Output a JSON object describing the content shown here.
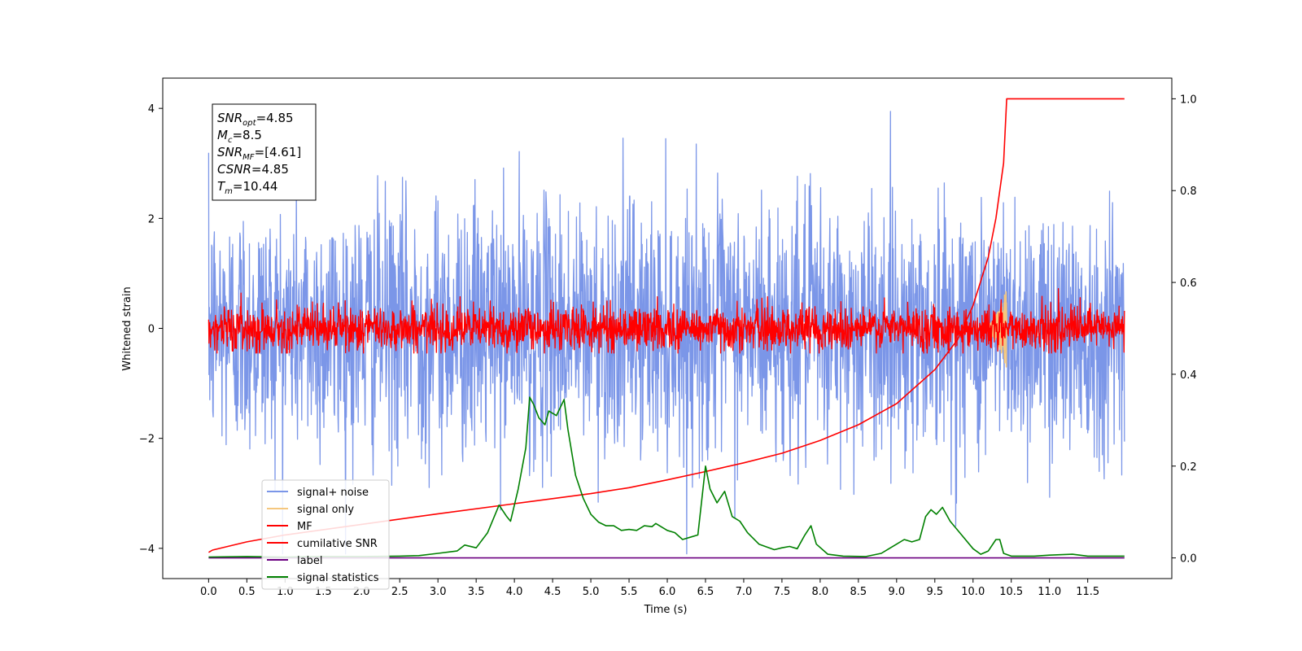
{
  "chart_data": {
    "type": "line",
    "title": "",
    "xlabel": "Time (s)",
    "ylabel": "Whitened strain",
    "ylabel_right": "",
    "xlim": [
      -0.6,
      12.6
    ],
    "ylim": [
      -4.55,
      4.55
    ],
    "ylim_right": [
      -0.045,
      1.045
    ],
    "x_ticks": [
      0.0,
      0.5,
      1.0,
      1.5,
      2.0,
      2.5,
      3.0,
      3.5,
      4.0,
      4.5,
      5.0,
      5.5,
      6.0,
      6.5,
      7.0,
      7.5,
      8.0,
      8.5,
      9.0,
      9.5,
      10.0,
      10.5,
      11.0,
      11.5
    ],
    "x_tick_labels": [
      "0.0",
      "0.5",
      "1.0",
      "1.5",
      "2.0",
      "2.5",
      "3.0",
      "3.5",
      "4.0",
      "4.5",
      "5.0",
      "5.5",
      "6.0",
      "6.5",
      "7.0",
      "7.5",
      "8.0",
      "8.5",
      "9.0",
      "9.5",
      "10.0",
      "10.5",
      "11.0",
      "11.5"
    ],
    "y_ticks": [
      -4,
      -2,
      0,
      2,
      4
    ],
    "y_tick_labels": [
      "−4",
      "−2",
      "0",
      "2",
      "4"
    ],
    "y_ticks_right": [
      0.0,
      0.2,
      0.4,
      0.6,
      0.8,
      1.0
    ],
    "y_tick_labels_right": [
      "0.0",
      "0.2",
      "0.4",
      "0.6",
      "0.8",
      "1.0"
    ],
    "grid": false,
    "legend_position": "lower-left",
    "annotation": {
      "lines": [
        {
          "base": "SNR",
          "sub": "opt",
          "value": "=4.85"
        },
        {
          "base": "M",
          "sub": "c",
          "value": "=8.5"
        },
        {
          "base": "SNR",
          "sub": "MF",
          "value": "=[4.61]"
        },
        {
          "base": "CSNR",
          "sub": "",
          "value": "=4.85"
        },
        {
          "base": "T",
          "sub": "m",
          "value": "=10.44"
        }
      ]
    },
    "series": [
      {
        "name": "signal+ noise",
        "color": "#7b96e8",
        "axis": "left",
        "kind": "noise",
        "x_range": [
          0.0,
          11.98
        ],
        "approx_std": 1.15,
        "approx_range": [
          -4.1,
          4.1
        ]
      },
      {
        "name": "signal only",
        "color": "#f5c77e",
        "axis": "left",
        "kind": "chirp",
        "x_range": [
          10.0,
          10.44
        ],
        "approx_peak": 0.75
      },
      {
        "name": "MF",
        "color": "#ff0000",
        "axis": "left",
        "kind": "noise",
        "x_range": [
          0.0,
          11.98
        ],
        "approx_std": 0.2,
        "approx_range": [
          -0.45,
          1.0
        ]
      },
      {
        "name": "cumilative SNR",
        "color": "#ff0000",
        "axis": "right",
        "kind": "curve",
        "x": [
          0.0,
          0.05,
          0.5,
          1.0,
          2.0,
          3.0,
          4.0,
          5.0,
          5.5,
          6.0,
          6.5,
          7.0,
          7.5,
          8.0,
          8.5,
          9.0,
          9.5,
          9.8,
          10.0,
          10.2,
          10.3,
          10.4,
          10.44,
          11.98
        ],
        "y": [
          0.012,
          0.017,
          0.035,
          0.05,
          0.073,
          0.096,
          0.118,
          0.14,
          0.153,
          0.17,
          0.188,
          0.207,
          0.228,
          0.256,
          0.29,
          0.336,
          0.41,
          0.476,
          0.55,
          0.655,
          0.74,
          0.86,
          1.0,
          1.0
        ]
      },
      {
        "name": "label",
        "color": "#6b0080",
        "axis": "right",
        "kind": "curve",
        "x": [
          0.0,
          11.98
        ],
        "y": [
          0.0,
          0.0
        ]
      },
      {
        "name": "signal statistics",
        "color": "#008000",
        "axis": "right",
        "kind": "curve",
        "x": [
          0.0,
          0.5,
          1.0,
          1.5,
          2.0,
          2.5,
          2.75,
          3.0,
          3.25,
          3.35,
          3.5,
          3.65,
          3.8,
          3.9,
          3.95,
          4.05,
          4.15,
          4.2,
          4.25,
          4.32,
          4.4,
          4.45,
          4.55,
          4.65,
          4.7,
          4.8,
          4.9,
          5.0,
          5.1,
          5.2,
          5.3,
          5.4,
          5.5,
          5.6,
          5.7,
          5.8,
          5.85,
          6.0,
          6.1,
          6.2,
          6.3,
          6.4,
          6.5,
          6.56,
          6.65,
          6.75,
          6.85,
          6.95,
          7.05,
          7.2,
          7.4,
          7.5,
          7.6,
          7.7,
          7.8,
          7.88,
          7.95,
          8.1,
          8.3,
          8.6,
          8.8,
          8.9,
          9.0,
          9.1,
          9.2,
          9.3,
          9.38,
          9.45,
          9.52,
          9.6,
          9.7,
          9.85,
          10.0,
          10.1,
          10.2,
          10.3,
          10.35,
          10.4,
          10.5,
          10.8,
          11.0,
          11.3,
          11.5,
          11.98
        ],
        "y": [
          0.002,
          0.003,
          0.002,
          0.003,
          0.003,
          0.004,
          0.005,
          0.01,
          0.015,
          0.028,
          0.022,
          0.055,
          0.115,
          0.09,
          0.08,
          0.15,
          0.24,
          0.35,
          0.335,
          0.305,
          0.29,
          0.32,
          0.31,
          0.345,
          0.28,
          0.18,
          0.13,
          0.095,
          0.078,
          0.07,
          0.07,
          0.06,
          0.062,
          0.06,
          0.07,
          0.068,
          0.075,
          0.06,
          0.055,
          0.04,
          0.045,
          0.05,
          0.2,
          0.15,
          0.12,
          0.145,
          0.09,
          0.08,
          0.055,
          0.03,
          0.018,
          0.022,
          0.025,
          0.02,
          0.05,
          0.07,
          0.03,
          0.008,
          0.004,
          0.003,
          0.01,
          0.02,
          0.03,
          0.04,
          0.035,
          0.04,
          0.09,
          0.105,
          0.095,
          0.11,
          0.08,
          0.05,
          0.02,
          0.008,
          0.015,
          0.04,
          0.04,
          0.01,
          0.004,
          0.004,
          0.006,
          0.008,
          0.004,
          0.004
        ]
      }
    ]
  }
}
